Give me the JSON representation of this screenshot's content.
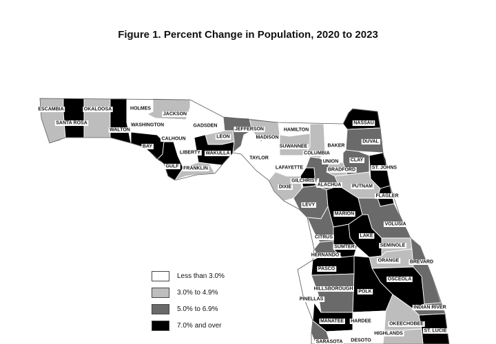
{
  "title": "Figure 1. Percent Change in Population, 2020 to 2023",
  "colors": {
    "lt3": "#ffffff",
    "c3to5": "#bdbdbd",
    "c5to7": "#6a6a6a",
    "ge7": "#000000",
    "outline": "#555555"
  },
  "legend": [
    {
      "label": "Less than 3.0%",
      "class": "lt3"
    },
    {
      "label": "3.0% to 4.9%",
      "class": "c3to5"
    },
    {
      "label": "5.0% to 6.9%",
      "class": "c5to7"
    },
    {
      "label": "7.0% and over",
      "class": "ge7"
    }
  ],
  "counties": [
    {
      "name": "ESCAMBIA",
      "class": "c3to5"
    },
    {
      "name": "SANTA ROSA",
      "class": "ge7"
    },
    {
      "name": "OKALOOSA",
      "class": "c3to5"
    },
    {
      "name": "WALTON",
      "class": "ge7"
    },
    {
      "name": "HOLMES",
      "class": "lt3"
    },
    {
      "name": "WASHINGTON",
      "class": "lt3"
    },
    {
      "name": "JACKSON",
      "class": "c3to5"
    },
    {
      "name": "BAY",
      "class": "ge7"
    },
    {
      "name": "CALHOUN",
      "class": "lt3"
    },
    {
      "name": "GULF",
      "class": "ge7"
    },
    {
      "name": "LIBERTY",
      "class": "lt3"
    },
    {
      "name": "GADSDEN",
      "class": "lt3"
    },
    {
      "name": "FRANKLIN",
      "class": "c3to5"
    },
    {
      "name": "LEON",
      "class": "c3to5"
    },
    {
      "name": "WAKULLA",
      "class": "ge7"
    },
    {
      "name": "JEFFERSON",
      "class": "c5to7"
    },
    {
      "name": "MADISON",
      "class": "c3to5"
    },
    {
      "name": "TAYLOR",
      "class": "lt3"
    },
    {
      "name": "HAMILTON",
      "class": "lt3"
    },
    {
      "name": "SUWANNEE",
      "class": "c3to5"
    },
    {
      "name": "LAFAYETTE",
      "class": "lt3"
    },
    {
      "name": "DIXIE",
      "class": "c3to5"
    },
    {
      "name": "COLUMBIA",
      "class": "c3to5"
    },
    {
      "name": "BAKER",
      "class": "lt3"
    },
    {
      "name": "UNION",
      "class": "lt3"
    },
    {
      "name": "BRADFORD",
      "class": "c3to5"
    },
    {
      "name": "GILCHRIST",
      "class": "ge7"
    },
    {
      "name": "ALACHUA",
      "class": "c5to7"
    },
    {
      "name": "LEVY",
      "class": "c5to7"
    },
    {
      "name": "NASSAU",
      "class": "ge7"
    },
    {
      "name": "DUVAL",
      "class": "c5to7"
    },
    {
      "name": "CLAY",
      "class": "c5to7"
    },
    {
      "name": "ST. JOHNS",
      "class": "ge7"
    },
    {
      "name": "PUTNAM",
      "class": "c3to5"
    },
    {
      "name": "FLAGLER",
      "class": "ge7"
    },
    {
      "name": "MARION",
      "class": "ge7"
    },
    {
      "name": "VOLUSIA",
      "class": "c5to7"
    },
    {
      "name": "CITRUS",
      "class": "c5to7"
    },
    {
      "name": "LAKE",
      "class": "ge7"
    },
    {
      "name": "SUMTER",
      "class": "ge7"
    },
    {
      "name": "SEMINOLE",
      "class": "c3to5"
    },
    {
      "name": "HERNANDO",
      "class": "c5to7"
    },
    {
      "name": "ORANGE",
      "class": "c3to5"
    },
    {
      "name": "BREVARD",
      "class": "c5to7"
    },
    {
      "name": "PASCO",
      "class": "ge7"
    },
    {
      "name": "OSCEOLA",
      "class": "ge7"
    },
    {
      "name": "HILLSBOROUGH",
      "class": "c5to7"
    },
    {
      "name": "POLK",
      "class": "ge7"
    },
    {
      "name": "PINELLAS",
      "class": "lt3"
    },
    {
      "name": "INDIAN RIVER",
      "class": "c5to7"
    },
    {
      "name": "MANATEE",
      "class": "ge7"
    },
    {
      "name": "HARDEE",
      "class": "lt3"
    },
    {
      "name": "OKEECHOBEE",
      "class": "c3to5"
    },
    {
      "name": "ST. LUCIE",
      "class": "ge7"
    },
    {
      "name": "HIGHLANDS",
      "class": "c3to5"
    },
    {
      "name": "SARASOTA",
      "class": "c5to7"
    },
    {
      "name": "DESOTO",
      "class": "lt3"
    }
  ]
}
